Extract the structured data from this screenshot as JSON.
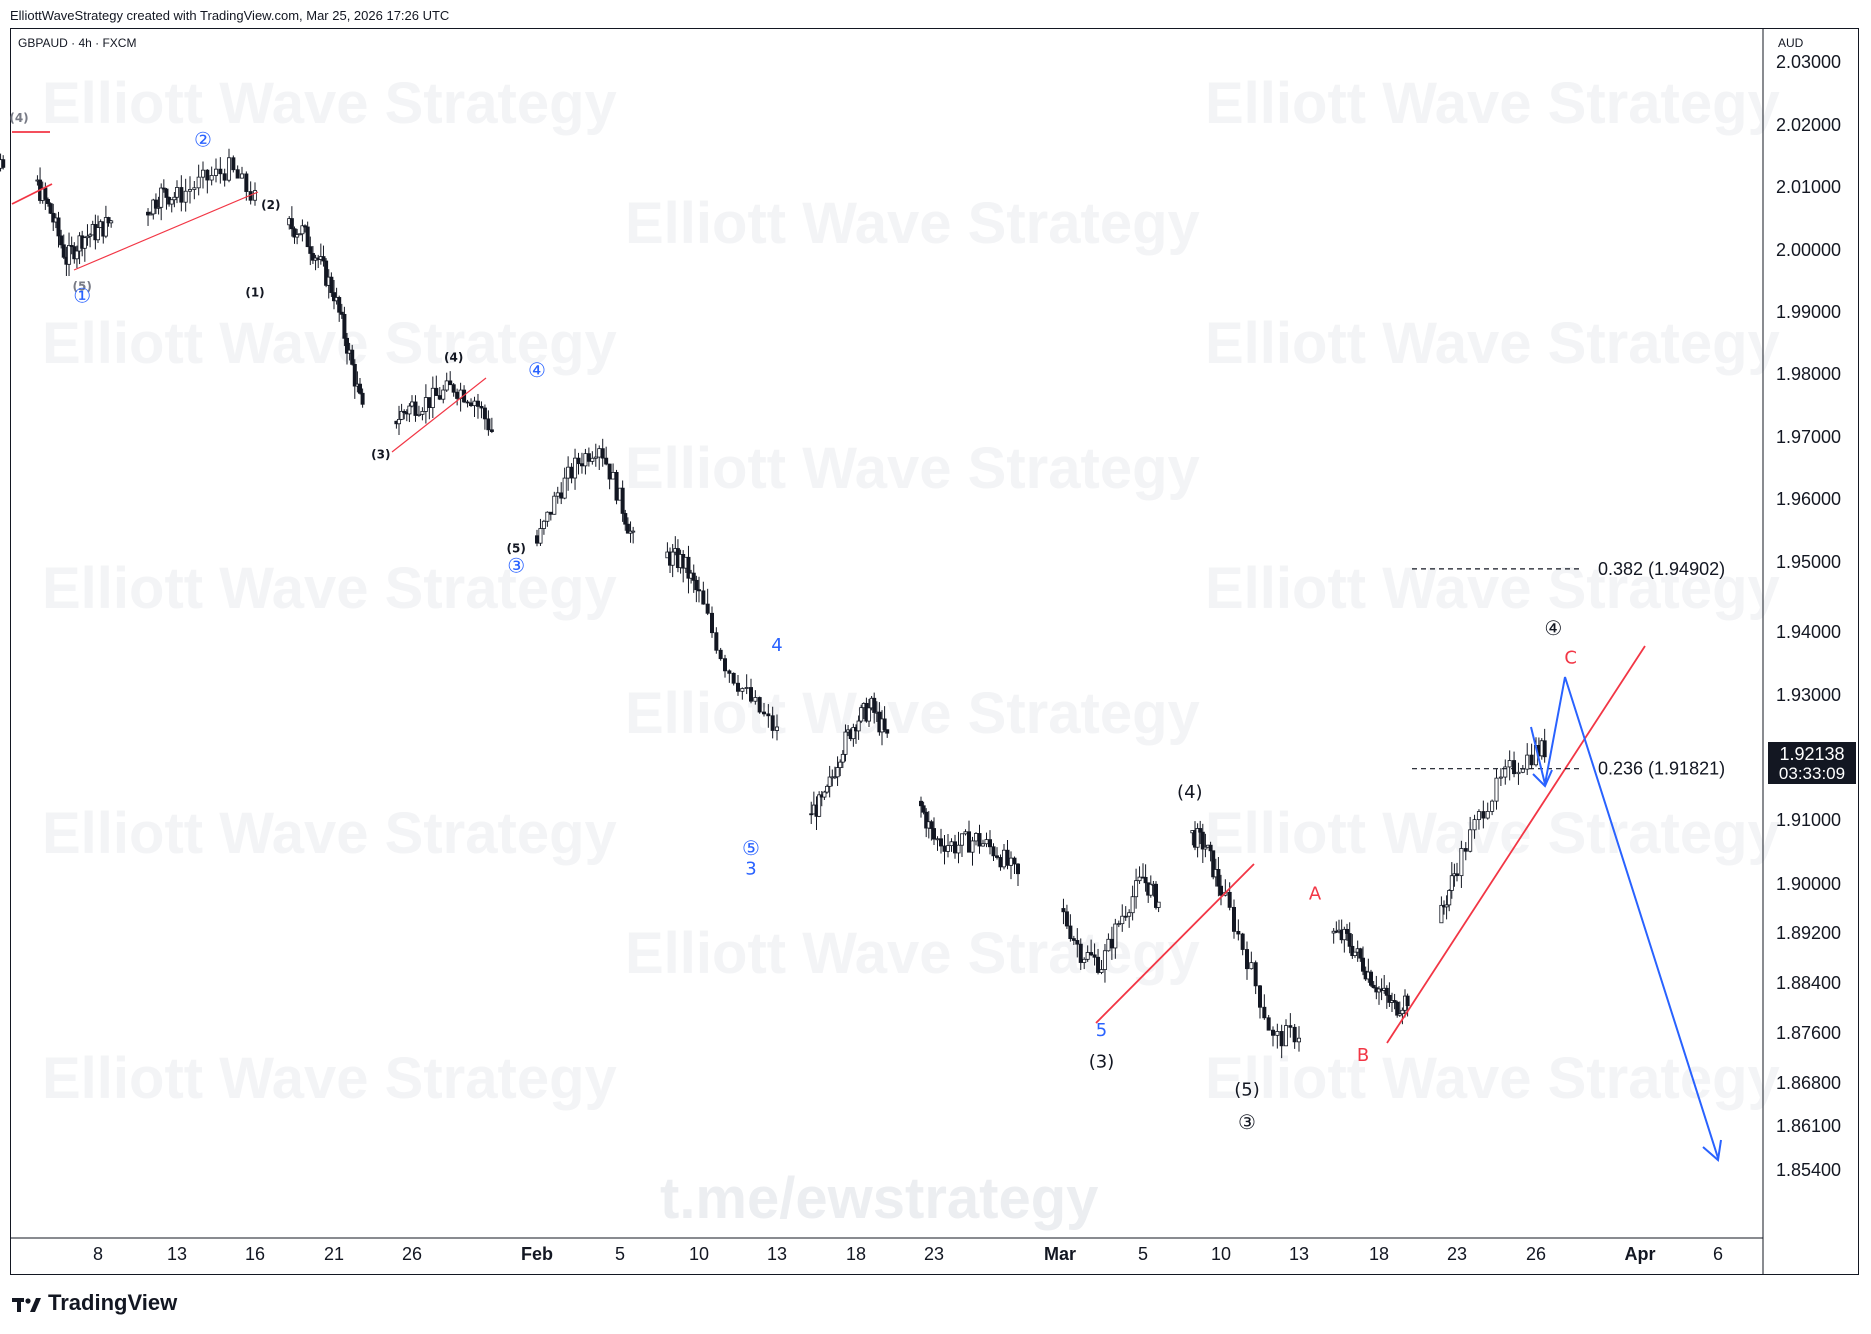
{
  "header": {
    "credit": "ElliottWaveStrategy created with TradingView.com, Mar 25, 2026 17:26 UTC"
  },
  "symbol": {
    "label": "GBPAUD · 4h · FXCM"
  },
  "currency": "AUD",
  "watermark": {
    "text": "Elliott Wave Strategy",
    "channel": "t.me/ewstrategy"
  },
  "brand": {
    "name": "TradingView"
  },
  "last_price": {
    "value": "1.92138",
    "countdown": "03:33:09"
  },
  "colors": {
    "candle": "#131722",
    "red": "#f23645",
    "blue": "#2962ff",
    "grid": "#ffffff"
  },
  "chart_data": {
    "type": "candlestick",
    "x_ticks": [
      "8",
      "13",
      "16",
      "21",
      "26",
      "Feb",
      "5",
      "10",
      "13",
      "18",
      "23",
      "Mar",
      "5",
      "10",
      "13",
      "18",
      "23",
      "26",
      "Apr",
      "6"
    ],
    "y_ticks": [
      "2.03000",
      "2.02000",
      "2.01000",
      "2.00000",
      "1.99000",
      "1.98000",
      "1.97000",
      "1.96000",
      "1.95000",
      "1.94000",
      "1.93000",
      "1.91000",
      "1.90000",
      "1.89200",
      "1.88400",
      "1.87600",
      "1.86800",
      "1.86100",
      "1.85400"
    ],
    "y_tick_values": [
      2.03,
      2.02,
      2.01,
      2.0,
      1.99,
      1.98,
      1.97,
      1.96,
      1.95,
      1.94,
      1.93,
      1.91,
      1.9,
      1.892,
      1.884,
      1.876,
      1.868,
      1.861,
      1.854
    ],
    "fib_levels": [
      {
        "label": "0.382 (1.94902)",
        "value": 1.94902
      },
      {
        "label": "0.236 (1.91821)",
        "value": 1.91821
      }
    ],
    "wave_labels": [
      {
        "text": "(4)",
        "color": "#787b86",
        "x": "Jan 3",
        "price": 2.0205
      },
      {
        "text": "(5)",
        "color": "#787b86",
        "x": "Jan 7",
        "price": 1.9935
      },
      {
        "text": "①",
        "color": "#2962ff",
        "x": "Jan 7",
        "price": 1.9915
      },
      {
        "text": "②",
        "color": "#2962ff",
        "x": "Jan 14",
        "price": 2.0165
      },
      {
        "text": "(2)",
        "color": "#131722",
        "x": "Jan 17",
        "price": 2.0065
      },
      {
        "text": "(1)",
        "color": "#131722",
        "x": "Jan 16",
        "price": 1.9925
      },
      {
        "text": "(4)",
        "color": "#131722",
        "x": "Jan 28",
        "price": 1.982
      },
      {
        "text": "(3)",
        "color": "#131722",
        "x": "Jan 24",
        "price": 1.9665
      },
      {
        "text": "④",
        "color": "#2962ff",
        "x": "Feb 1",
        "price": 1.9795
      },
      {
        "text": "(5)",
        "color": "#131722",
        "x": "Jan 31",
        "price": 1.9515
      },
      {
        "text": "③",
        "color": "#2962ff",
        "x": "Jan 31",
        "price": 1.9485
      },
      {
        "text": "4",
        "color": "#2962ff",
        "x": "Feb 13",
        "price": 1.937
      },
      {
        "text": "⑤",
        "color": "#2962ff",
        "x": "Feb 12",
        "price": 1.9045
      },
      {
        "text": "3",
        "color": "#2962ff",
        "x": "Feb 12",
        "price": 1.9015
      },
      {
        "text": "(4)",
        "color": "#131722",
        "x": "Mar 8",
        "price": 1.9135
      },
      {
        "text": "5",
        "color": "#2962ff",
        "x": "Mar 3",
        "price": 1.8755
      },
      {
        "text": "(3)",
        "color": "#131722",
        "x": "Mar 3",
        "price": 1.8705
      },
      {
        "text": "(5)",
        "color": "#131722",
        "x": "Mar 11",
        "price": 1.866
      },
      {
        "text": "③",
        "color": "#131722",
        "x": "Mar 11",
        "price": 1.8605
      },
      {
        "text": "A",
        "color": "#f23645",
        "x": "Mar 14",
        "price": 1.8975
      },
      {
        "text": "B",
        "color": "#f23645",
        "x": "Mar 17",
        "price": 1.8715
      },
      {
        "text": "④",
        "color": "#131722",
        "x": "Mar 27",
        "price": 1.9395
      },
      {
        "text": "C",
        "color": "#f23645",
        "x": "Mar 28",
        "price": 1.935
      }
    ]
  }
}
